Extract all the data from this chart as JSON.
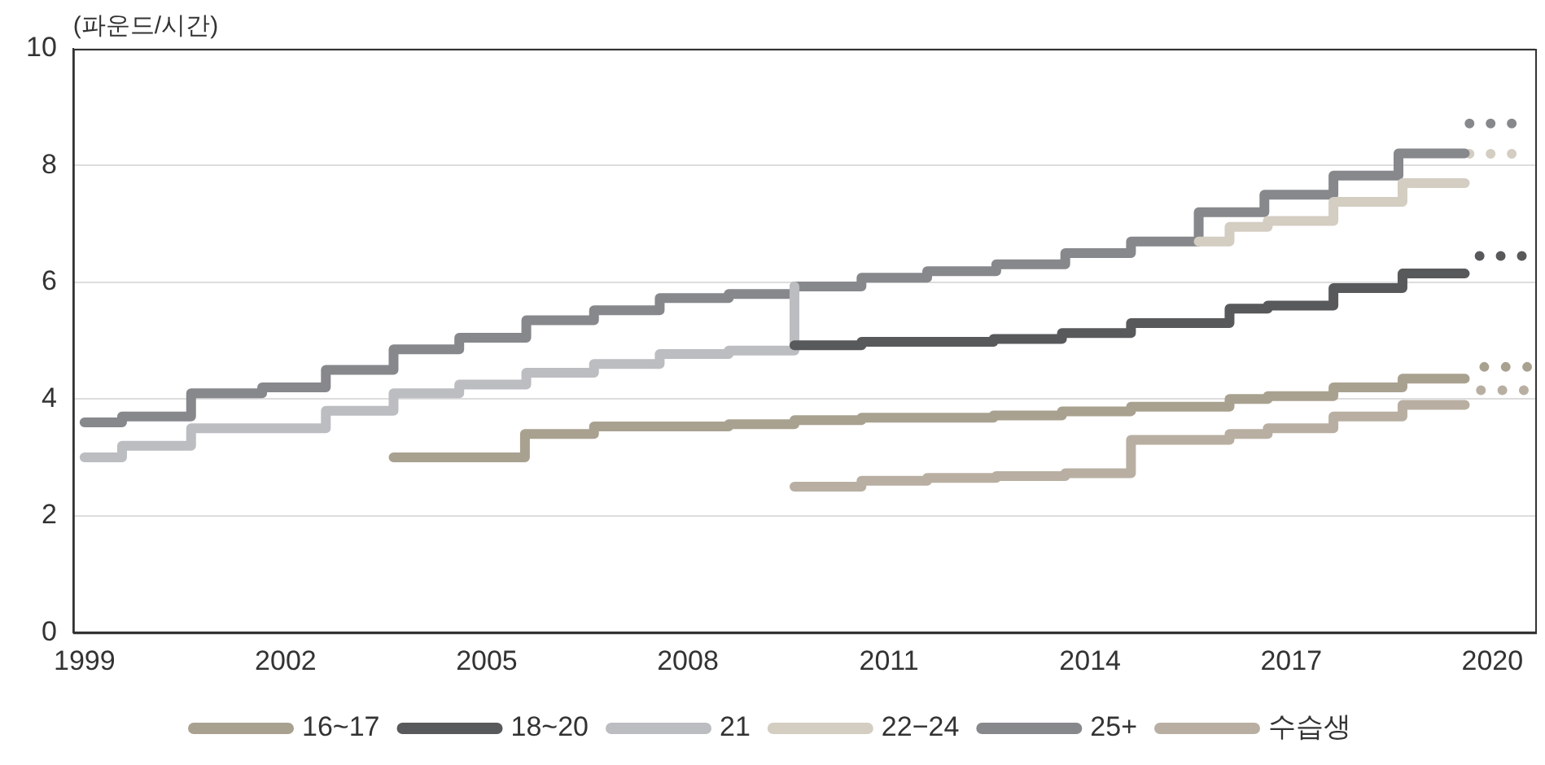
{
  "chart_data": {
    "type": "step",
    "ylabel": "(파운드/시간)",
    "xlim": [
      1998.83,
      2020.64
    ],
    "xticks": [
      1999,
      2002,
      2005,
      2008,
      2011,
      2014,
      2017,
      2020
    ],
    "ylim": [
      0,
      10
    ],
    "yticks": [
      0,
      2,
      4,
      6,
      8,
      10
    ],
    "grid": "y",
    "legend": "bottom",
    "marker": "none",
    "line_style": "solid",
    "series": [
      {
        "name": "16~17",
        "color": "#a9a190",
        "x": [
          2003.61,
          2005.57,
          2006.6,
          2008.61,
          2009.59,
          2010.59,
          2012.56,
          2013.58,
          2014.61,
          2016.08,
          2016.65,
          2017.63,
          2018.66,
          2019.59
        ],
        "values": [
          3.0,
          3.4,
          3.53,
          3.57,
          3.64,
          3.68,
          3.72,
          3.79,
          3.87,
          4.0,
          4.05,
          4.2,
          4.35,
          4.35
        ]
      },
      {
        "name": "18~20",
        "color": "#58595b",
        "x": [
          2009.59,
          2010.59,
          2012.56,
          2013.58,
          2014.61,
          2016.08,
          2016.65,
          2017.63,
          2018.66,
          2019.59
        ],
        "values": [
          4.92,
          4.98,
          5.03,
          5.13,
          5.3,
          5.55,
          5.6,
          5.9,
          6.15,
          6.15
        ]
      },
      {
        "name": "21",
        "color": "#bcbdc1",
        "x": [
          1999.0,
          1999.56,
          2000.59,
          2002.6,
          2003.61,
          2004.59,
          2005.59,
          2006.6,
          2007.58,
          2008.61,
          2009.59
        ],
        "values": [
          3.0,
          3.2,
          3.5,
          3.8,
          4.1,
          4.25,
          4.45,
          4.6,
          4.77,
          4.83,
          5.93
        ]
      },
      {
        "name": "22−24",
        "color": "#d4cdc2",
        "x": [
          2015.62,
          2016.08,
          2016.65,
          2017.63,
          2018.66,
          2019.59
        ],
        "values": [
          6.7,
          6.95,
          7.05,
          7.38,
          7.7,
          7.7
        ]
      },
      {
        "name": "25+",
        "color": "#87888c",
        "x": [
          1999.0,
          1999.56,
          2000.59,
          2001.65,
          2002.6,
          2003.61,
          2004.59,
          2005.59,
          2006.6,
          2007.58,
          2008.61,
          2009.59,
          2010.59,
          2011.57,
          2012.6,
          2013.63,
          2014.61,
          2015.62,
          2016.6,
          2017.63,
          2018.6,
          2019.59
        ],
        "values": [
          3.6,
          3.7,
          4.1,
          4.2,
          4.5,
          4.85,
          5.05,
          5.35,
          5.52,
          5.73,
          5.8,
          5.93,
          6.08,
          6.19,
          6.31,
          6.5,
          6.7,
          7.2,
          7.5,
          7.83,
          8.21,
          8.21
        ]
      },
      {
        "name": "수습생",
        "color": "#b8afa2",
        "x": [
          2009.59,
          2010.59,
          2011.57,
          2012.6,
          2013.63,
          2014.61,
          2016.08,
          2016.65,
          2017.63,
          2018.66,
          2019.59
        ],
        "values": [
          2.5,
          2.6,
          2.65,
          2.68,
          2.73,
          3.3,
          3.4,
          3.5,
          3.7,
          3.9,
          3.9
        ]
      },
      {
        "type": "line",
        "line_style": "dotted",
        "color": "#a9a190",
        "x": [
          2019.88,
          2020.52
        ],
        "values": [
          4.55,
          4.55
        ]
      },
      {
        "type": "line",
        "line_style": "dotted",
        "color": "#58595b",
        "x": [
          2019.81,
          2020.44
        ],
        "values": [
          6.45,
          6.45
        ]
      },
      {
        "type": "line",
        "line_style": "dotted",
        "color": "#d4cdc2",
        "x": [
          2019.66,
          2020.29
        ],
        "values": [
          8.2,
          8.2
        ]
      },
      {
        "type": "line",
        "line_style": "dotted",
        "color": "#87888c",
        "x": [
          2019.66,
          2020.29
        ],
        "values": [
          8.72,
          8.72
        ]
      },
      {
        "type": "line",
        "line_style": "dotted",
        "color": "#b8afa2",
        "x": [
          2019.83,
          2020.47
        ],
        "values": [
          4.15,
          4.15
        ]
      }
    ]
  }
}
